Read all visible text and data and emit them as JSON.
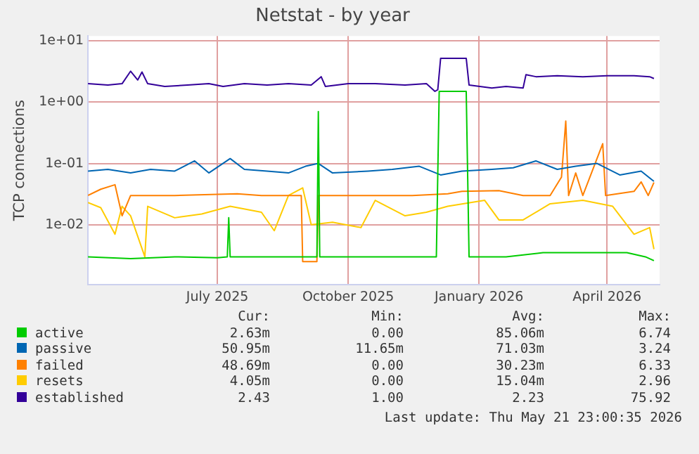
{
  "chart_data": {
    "type": "line",
    "title": "Netstat - by year",
    "ylabel": "TCP connections",
    "log": "y",
    "grid": true,
    "legend": "bottom",
    "marker": "none",
    "line_style": "solid",
    "xlim": [
      "2025-04-01",
      "2026-05-08"
    ],
    "xticks": [
      {
        "value": "2025-07-01",
        "label": "July 2025"
      },
      {
        "value": "2025-10-01",
        "label": "October 2025"
      },
      {
        "value": "2026-01-01",
        "label": "January 2026"
      },
      {
        "value": "2026-04-01",
        "label": "April 2026"
      }
    ],
    "ylim": [
      0.00105,
      12
    ],
    "yticks": [
      {
        "value": 0.01,
        "label": "1e-02"
      },
      {
        "value": 0.1,
        "label": "1e-01"
      },
      {
        "value": 1,
        "label": "1e+00"
      },
      {
        "value": 10,
        "label": "1e+01"
      }
    ],
    "series": [
      {
        "name": "active",
        "color": "#00cc00",
        "x": [
          "2025-04-01",
          "2025-05-01",
          "2025-06-01",
          "2025-07-01",
          "2025-07-08",
          "2025-07-09",
          "2025-07-10",
          "2025-08-01",
          "2025-09-01",
          "2025-09-09",
          "2025-09-10",
          "2025-09-11",
          "2025-10-15",
          "2025-11-15",
          "2025-12-02",
          "2025-12-04",
          "2025-12-23",
          "2025-12-25",
          "2026-01-20",
          "2026-02-15",
          "2026-03-15",
          "2026-04-15",
          "2026-04-28",
          "2026-05-04"
        ],
        "values": [
          0.003,
          0.0028,
          0.003,
          0.0029,
          0.003,
          0.013,
          0.003,
          0.003,
          0.003,
          0.003,
          0.7,
          0.003,
          0.003,
          0.003,
          0.003,
          1.5,
          1.5,
          0.003,
          0.003,
          0.0035,
          0.0035,
          0.0035,
          0.003,
          0.0026
        ]
      },
      {
        "name": "passive",
        "color": "#0066b3",
        "x": [
          "2025-04-01",
          "2025-04-15",
          "2025-05-01",
          "2025-05-15",
          "2025-06-01",
          "2025-06-15",
          "2025-06-25",
          "2025-07-10",
          "2025-07-20",
          "2025-08-05",
          "2025-08-20",
          "2025-09-01",
          "2025-09-10",
          "2025-09-20",
          "2025-10-15",
          "2025-11-01",
          "2025-11-20",
          "2025-12-05",
          "2025-12-20",
          "2026-01-10",
          "2026-01-25",
          "2026-02-10",
          "2026-02-25",
          "2026-03-10",
          "2026-03-25",
          "2026-04-10",
          "2026-04-25",
          "2026-05-04"
        ],
        "values": [
          0.075,
          0.08,
          0.07,
          0.08,
          0.075,
          0.11,
          0.07,
          0.12,
          0.08,
          0.075,
          0.07,
          0.09,
          0.1,
          0.07,
          0.075,
          0.08,
          0.09,
          0.065,
          0.075,
          0.08,
          0.085,
          0.11,
          0.08,
          0.09,
          0.1,
          0.065,
          0.075,
          0.051
        ]
      },
      {
        "name": "failed",
        "color": "#ff8000",
        "x": [
          "2025-04-01",
          "2025-04-10",
          "2025-04-20",
          "2025-04-25",
          "2025-05-01",
          "2025-06-01",
          "2025-07-15",
          "2025-08-01",
          "2025-08-29",
          "2025-08-30",
          "2025-09-09",
          "2025-09-10",
          "2025-10-15",
          "2025-11-15",
          "2025-12-10",
          "2025-12-20",
          "2026-01-15",
          "2026-02-01",
          "2026-02-20",
          "2026-02-28",
          "2026-03-03",
          "2026-03-05",
          "2026-03-10",
          "2026-03-15",
          "2026-03-29",
          "2026-03-31",
          "2026-04-20",
          "2026-04-25",
          "2026-04-30",
          "2026-05-04"
        ],
        "values": [
          0.03,
          0.038,
          0.045,
          0.014,
          0.03,
          0.03,
          0.032,
          0.03,
          0.03,
          0.0025,
          0.0025,
          0.03,
          0.03,
          0.03,
          0.032,
          0.035,
          0.036,
          0.03,
          0.03,
          0.06,
          0.49,
          0.03,
          0.07,
          0.03,
          0.21,
          0.03,
          0.035,
          0.05,
          0.03,
          0.049
        ]
      },
      {
        "name": "resets",
        "color": "#ffcc00",
        "x": [
          "2025-04-01",
          "2025-04-10",
          "2025-04-20",
          "2025-04-25",
          "2025-05-01",
          "2025-05-11",
          "2025-05-13",
          "2025-06-01",
          "2025-06-20",
          "2025-07-10",
          "2025-08-01",
          "2025-08-10",
          "2025-08-20",
          "2025-08-30",
          "2025-09-05",
          "2025-09-20",
          "2025-10-10",
          "2025-10-20",
          "2025-11-10",
          "2025-11-25",
          "2025-12-10",
          "2026-01-05",
          "2026-01-15",
          "2026-02-01",
          "2026-02-20",
          "2026-03-15",
          "2026-04-05",
          "2026-04-20",
          "2026-05-01",
          "2026-05-04"
        ],
        "values": [
          0.023,
          0.019,
          0.007,
          0.02,
          0.014,
          0.003,
          0.02,
          0.013,
          0.015,
          0.02,
          0.016,
          0.008,
          0.03,
          0.04,
          0.01,
          0.011,
          0.009,
          0.025,
          0.014,
          0.016,
          0.02,
          0.025,
          0.012,
          0.012,
          0.022,
          0.025,
          0.02,
          0.007,
          0.009,
          0.004
        ]
      },
      {
        "name": "established",
        "color": "#330099",
        "x": [
          "2025-04-01",
          "2025-04-15",
          "2025-04-25",
          "2025-05-01",
          "2025-05-06",
          "2025-05-09",
          "2025-05-13",
          "2025-05-25",
          "2025-06-10",
          "2025-06-25",
          "2025-07-05",
          "2025-07-20",
          "2025-08-05",
          "2025-08-20",
          "2025-09-05",
          "2025-09-12",
          "2025-09-15",
          "2025-10-01",
          "2025-10-20",
          "2025-11-10",
          "2025-11-25",
          "2025-12-01",
          "2025-12-03",
          "2025-12-05",
          "2025-12-23",
          "2025-12-25",
          "2026-01-10",
          "2026-01-20",
          "2026-02-01",
          "2026-02-03",
          "2026-02-10",
          "2026-02-25",
          "2026-03-15",
          "2026-04-01",
          "2026-04-20",
          "2026-05-01",
          "2026-05-04"
        ],
        "values": [
          2.0,
          1.9,
          2.0,
          3.2,
          2.3,
          3.1,
          2.0,
          1.8,
          1.9,
          2.0,
          1.8,
          2.0,
          1.9,
          2.0,
          1.9,
          2.6,
          1.8,
          2.0,
          2.0,
          1.9,
          2.0,
          1.5,
          1.6,
          5.2,
          5.2,
          1.9,
          1.7,
          1.8,
          1.7,
          2.8,
          2.6,
          2.7,
          2.6,
          2.7,
          2.7,
          2.6,
          2.43
        ]
      }
    ],
    "annotations": [
      "Cur:",
      "Min:",
      "Avg:",
      "Max:",
      "2.63m",
      "0.00",
      "85.06m",
      "6.74",
      "50.95m",
      "11.65m",
      "71.03m",
      "3.24",
      "48.69m",
      "0.00",
      "30.23m",
      "6.33",
      "4.05m",
      "0.00",
      "15.04m",
      "2.96",
      "2.43",
      "1.00",
      "2.23",
      "75.92",
      "Last update: Thu May 21 23:00:35 2026"
    ]
  }
}
